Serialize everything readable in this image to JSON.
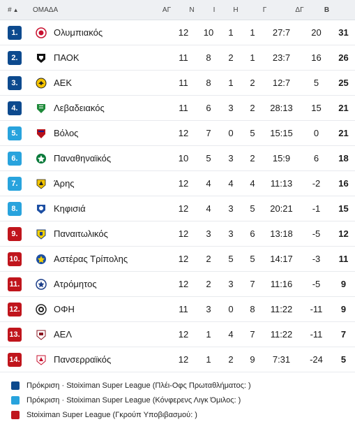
{
  "header": {
    "pos": "#",
    "team": "ΟΜΑΔΑ",
    "ag": "ΑΓ",
    "n": "Ν",
    "i": "Ι",
    "h": "Η",
    "g": "Γ",
    "dg": "ΔΓ",
    "b": "Β"
  },
  "colors": {
    "blue": "#0d4a8e",
    "lightblue": "#28a3dd",
    "red": "#c0151c"
  },
  "rows": [
    {
      "pos": "1.",
      "badge": "blue",
      "team": "Ολυμπιακός",
      "logo": "olympiakos-logo",
      "ag": "12",
      "n": "10",
      "i": "1",
      "h": "1",
      "g": "27:7",
      "dg": "20",
      "b": "31"
    },
    {
      "pos": "2.",
      "badge": "blue",
      "team": "ΠΑΟΚ",
      "logo": "paok-logo",
      "ag": "11",
      "n": "8",
      "i": "2",
      "h": "1",
      "g": "23:7",
      "dg": "16",
      "b": "26"
    },
    {
      "pos": "3.",
      "badge": "blue",
      "team": "ΑΕΚ",
      "logo": "aek-logo",
      "ag": "11",
      "n": "8",
      "i": "1",
      "h": "2",
      "g": "12:7",
      "dg": "5",
      "b": "25"
    },
    {
      "pos": "4.",
      "badge": "blue",
      "team": "Λεβαδειακός",
      "logo": "levadiakos-logo",
      "ag": "11",
      "n": "6",
      "i": "3",
      "h": "2",
      "g": "28:13",
      "dg": "15",
      "b": "21"
    },
    {
      "pos": "5.",
      "badge": "lightblue",
      "team": "Βόλος",
      "logo": "volos-logo",
      "ag": "12",
      "n": "7",
      "i": "0",
      "h": "5",
      "g": "15:15",
      "dg": "0",
      "b": "21"
    },
    {
      "pos": "6.",
      "badge": "lightblue",
      "team": "Παναθηναϊκός",
      "logo": "panathinaikos-logo",
      "ag": "10",
      "n": "5",
      "i": "3",
      "h": "2",
      "g": "15:9",
      "dg": "6",
      "b": "18"
    },
    {
      "pos": "7.",
      "badge": "lightblue",
      "team": "Άρης",
      "logo": "aris-logo",
      "ag": "12",
      "n": "4",
      "i": "4",
      "h": "4",
      "g": "11:13",
      "dg": "-2",
      "b": "16"
    },
    {
      "pos": "8.",
      "badge": "lightblue",
      "team": "Κηφισιά",
      "logo": "kifisia-logo",
      "ag": "12",
      "n": "4",
      "i": "3",
      "h": "5",
      "g": "20:21",
      "dg": "-1",
      "b": "15"
    },
    {
      "pos": "9.",
      "badge": "red",
      "team": "Παναιτωλικός",
      "logo": "panetolikos-logo",
      "ag": "12",
      "n": "3",
      "i": "3",
      "h": "6",
      "g": "13:18",
      "dg": "-5",
      "b": "12"
    },
    {
      "pos": "10.",
      "badge": "red",
      "team": "Αστέρας Τρίπολης",
      "logo": "asteras-logo",
      "ag": "12",
      "n": "2",
      "i": "5",
      "h": "5",
      "g": "14:17",
      "dg": "-3",
      "b": "11"
    },
    {
      "pos": "11.",
      "badge": "red",
      "team": "Ατρόμητος",
      "logo": "atromitos-logo",
      "ag": "12",
      "n": "2",
      "i": "3",
      "h": "7",
      "g": "11:16",
      "dg": "-5",
      "b": "9"
    },
    {
      "pos": "12.",
      "badge": "red",
      "team": "ΟΦΗ",
      "logo": "ofi-logo",
      "ag": "11",
      "n": "3",
      "i": "0",
      "h": "8",
      "g": "11:22",
      "dg": "-11",
      "b": "9"
    },
    {
      "pos": "13.",
      "badge": "red",
      "team": "ΑΕΛ",
      "logo": "ael-logo",
      "ag": "12",
      "n": "1",
      "i": "4",
      "h": "7",
      "g": "11:22",
      "dg": "-11",
      "b": "7"
    },
    {
      "pos": "14.",
      "badge": "red",
      "team": "Πανσερραϊκός",
      "logo": "panserraikos-logo",
      "ag": "12",
      "n": "1",
      "i": "2",
      "h": "9",
      "g": "7:31",
      "dg": "-24",
      "b": "5"
    }
  ],
  "legend": [
    {
      "color": "blue",
      "text": "Πρόκριση · Stoiximan Super League (Πλέι-Οφς Πρωταθλήματος: )"
    },
    {
      "color": "lightblue",
      "text": "Πρόκριση · Stoiximan Super League (Κόνφερενς Λιγκ Όμιλος: )"
    },
    {
      "color": "red",
      "text": "Stoiximan Super League (Γκρούπ Υποβιβασμού: )"
    }
  ]
}
